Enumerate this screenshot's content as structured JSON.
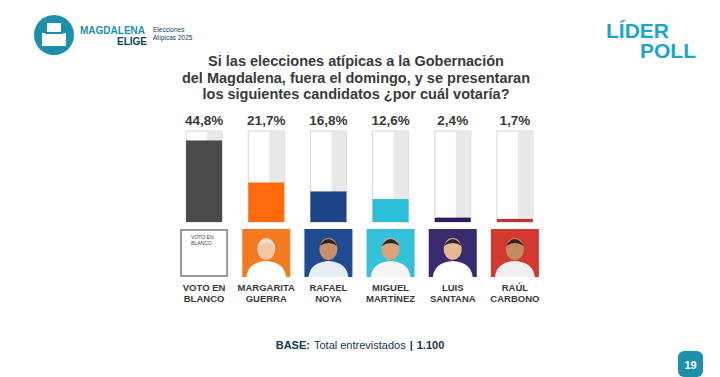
{
  "header": {
    "brand_top": "MAGDALENA",
    "brand_bottom": "ELIGE",
    "brand_note": [
      "Elecciones",
      "Atípicas 2025"
    ],
    "pollster_top": "LÍDER",
    "pollster_bottom": "POLL"
  },
  "chart_data": {
    "type": "bar",
    "title": [
      "Si las elecciones atípicas a la Gobernación",
      "del Magdalena, fuera el domingo, y se presentaran",
      "los siguientes candidatos ¿por cuál votaría?"
    ],
    "categories": [
      "VOTO EN BLANCO",
      "MARGARITA GUERRA",
      "RAFAEL NOYA",
      "MIGUEL MARTÍNEZ",
      "LUIS SANTANA",
      "RAÚL CARBONO"
    ],
    "values": [
      44.8,
      21.7,
      16.8,
      12.6,
      2.4,
      1.7
    ],
    "value_labels": [
      "44,8%",
      "21,7%",
      "16,8%",
      "12,6%",
      "2,4%",
      "1,7%"
    ],
    "colors": [
      "#4a4a4a",
      "#ff6b0a",
      "#1d4487",
      "#2cbfd9",
      "#2e1b5e",
      "#c8302c"
    ],
    "ylim": [
      0,
      50
    ],
    "data_labels": true,
    "tick_labels": false,
    "annotations": [
      "VOTO EN BLANCO"
    ]
  },
  "footer": {
    "base_label": "BASE:",
    "base_text": "Total entrevistados",
    "separator": "|",
    "base_n": "1.100",
    "page": 19
  }
}
